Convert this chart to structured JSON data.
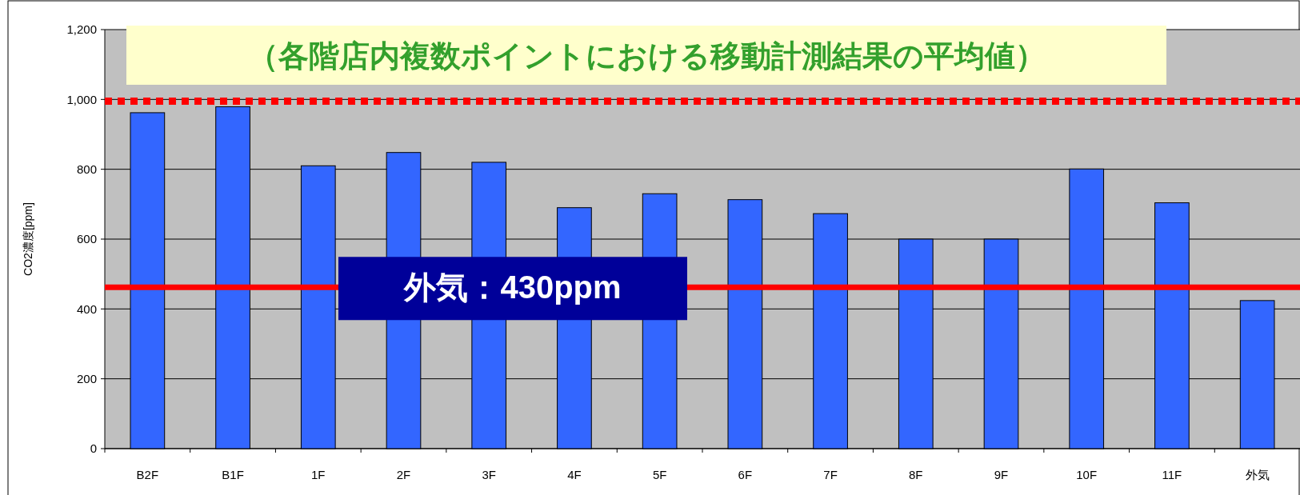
{
  "chart_data": {
    "type": "bar",
    "title": "（各階店内複数ポイントにおける移動計測結果の平均値）",
    "ylabel": "CO2濃度[ppm]",
    "categories": [
      "B2F",
      "B1F",
      "1F",
      "2F",
      "3F",
      "4F",
      "5F",
      "6F",
      "7F",
      "8F",
      "9F",
      "10F",
      "11F",
      "外気"
    ],
    "values": [
      962,
      979,
      810,
      848,
      820,
      690,
      730,
      713,
      673,
      600,
      600,
      801,
      704,
      424
    ],
    "color": "#3366ff",
    "ylim": [
      0,
      1200
    ],
    "yticks": [
      0,
      200,
      400,
      600,
      800,
      {
        "value": 1000,
        "label": "1,000"
      },
      {
        "value": 1200,
        "label": "1,200"
      }
    ],
    "grid": "y",
    "ref_lines": [
      {
        "axis": "y",
        "value": 995,
        "color": "#ff0000",
        "line_style": "dotted"
      },
      {
        "axis": "y",
        "value": 462,
        "color": "#ff0000",
        "line_style": "solid",
        "label": "外気：430ppm"
      }
    ]
  }
}
